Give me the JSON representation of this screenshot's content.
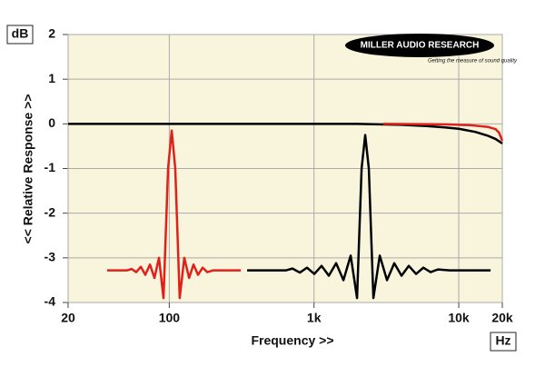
{
  "chart_data": {
    "type": "line",
    "unit_y": "dB",
    "unit_x": "Hz",
    "ylabel": "<< Relative Response >>",
    "xlabel": "Frequency >>",
    "logo": "MILLER AUDIO RESEARCH",
    "logo_tagline": "Getting the measure of sound quality",
    "xscale": "log",
    "grid": true,
    "xlim": [
      20,
      20000
    ],
    "ylim": [
      -4,
      2
    ],
    "xticks": [
      20,
      100,
      {
        "value": 1000,
        "label": "1k"
      },
      {
        "value": 10000,
        "label": "10k"
      },
      {
        "value": 20000,
        "label": "20k"
      }
    ],
    "yticks": [
      2,
      1,
      0,
      -1,
      -2,
      -3,
      -4
    ],
    "series": [
      {
        "color": "#000000",
        "x": [
          20,
          2000,
          4000,
          6000,
          8000,
          10000,
          13000,
          16000,
          18000,
          20000
        ],
        "values": [
          0,
          0,
          -0.02,
          -0.05,
          -0.08,
          -0.11,
          -0.18,
          -0.27,
          -0.34,
          -0.44
        ]
      },
      {
        "color": "#e0201a",
        "x": [
          3000,
          8000,
          12000,
          16000,
          18000,
          19000,
          20000
        ],
        "values": [
          0,
          -0.01,
          -0.03,
          -0.07,
          -0.12,
          -0.2,
          -0.38
        ]
      },
      {
        "color": "#e0201a",
        "x": [
          37.2,
          51.2,
          55.0,
          59.1,
          63.6,
          68.3,
          73.5,
          79.0,
          84.9,
          91.2,
          98.1,
          103.9,
          110,
          118,
          127,
          137,
          147,
          158,
          170,
          183,
          202,
          312
        ],
        "values": [
          -3.28,
          -3.28,
          -3.25,
          -3.32,
          -3.2,
          -3.38,
          -3.15,
          -3.45,
          -3.0,
          -3.9,
          -1.0,
          -0.15,
          -1.0,
          -3.9,
          -3.0,
          -3.45,
          -3.15,
          -3.38,
          -3.22,
          -3.32,
          -3.28,
          -3.28
        ]
      },
      {
        "color": "#000000",
        "x": [
          345,
          642,
          710,
          798,
          895,
          1005,
          1128,
          1266,
          1422,
          1597,
          1792,
          1983,
          2132,
          2258,
          2392,
          2572,
          2846,
          3194,
          3586,
          4025,
          4518,
          5073,
          5694,
          6391,
          7175,
          8661,
          16600
        ],
        "values": [
          -3.28,
          -3.28,
          -3.24,
          -3.33,
          -3.22,
          -3.36,
          -3.18,
          -3.4,
          -3.12,
          -3.5,
          -2.95,
          -3.9,
          -1.0,
          -0.25,
          -1.0,
          -3.9,
          -2.95,
          -3.5,
          -3.12,
          -3.4,
          -3.18,
          -3.36,
          -3.22,
          -3.32,
          -3.26,
          -3.28,
          -3.28
        ]
      }
    ]
  }
}
